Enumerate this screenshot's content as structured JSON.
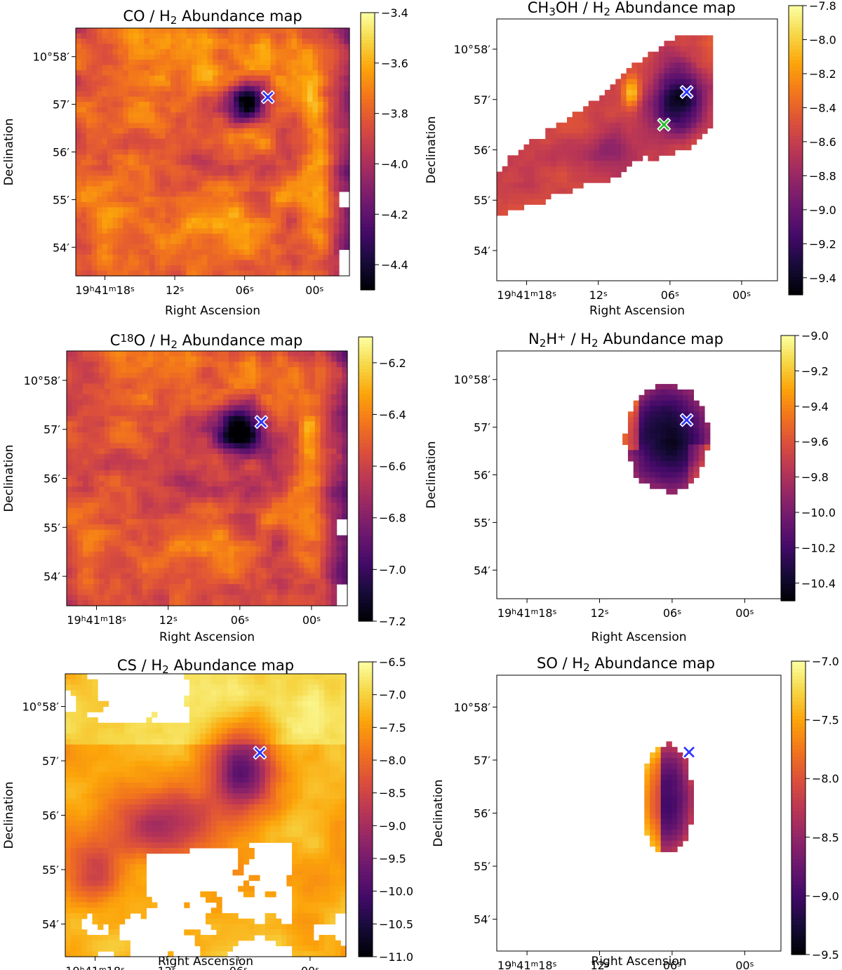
{
  "figure": {
    "common": {
      "xlabel": "Right Ascension",
      "ylabel": "Declination",
      "x_ticks": [
        {
          "h": "19",
          "m": "41",
          "s": "18"
        },
        {
          "s": "12"
        },
        {
          "s": "06"
        },
        {
          "s": "00"
        }
      ],
      "y_ticks": [
        {
          "deg": "10",
          "min": "58"
        },
        {
          "min": "57"
        },
        {
          "min": "56"
        },
        {
          "min": "55"
        },
        {
          "min": "54"
        }
      ],
      "colormap": "inferno",
      "marker_colors": {
        "blue": "#2b33ff",
        "green": "#2bbf2b"
      }
    }
  },
  "chart_data": [
    {
      "type": "heatmap",
      "title": {
        "pre": "CO / H",
        "sub": "2",
        "post": " Abundance map"
      },
      "xlabel": "Right Ascension",
      "ylabel": "Declination",
      "colorbar": {
        "range": [
          -4.5,
          -3.4
        ],
        "ticks": [
          "−3.4",
          "−3.6",
          "−3.8",
          "−4.0",
          "−4.2",
          "−4.4"
        ],
        "tick_values": [
          -3.4,
          -3.6,
          -3.8,
          -4.0,
          -4.2,
          -4.4
        ]
      },
      "markers": [
        {
          "color": "blue",
          "ra_s": 4.0,
          "dec_min": 57.15
        }
      ],
      "map": "co"
    },
    {
      "type": "heatmap",
      "title": {
        "pre": "CH",
        "sub": "3",
        "post": "OH / H",
        "sub2": "2",
        "post2": " Abundance map"
      },
      "xlabel": "Right Ascension",
      "ylabel": "Declination",
      "colorbar": {
        "range": [
          -9.5,
          -7.8
        ],
        "ticks": [
          "−7.8",
          "−8.0",
          "−8.2",
          "−8.4",
          "−8.6",
          "−8.8",
          "−9.0",
          "−9.2",
          "−9.4"
        ],
        "tick_values": [
          -7.8,
          -8.0,
          -8.2,
          -8.4,
          -8.6,
          -8.8,
          -9.0,
          -9.2,
          -9.4
        ]
      },
      "markers": [
        {
          "color": "blue",
          "ra_s": 4.6,
          "dec_min": 57.15
        },
        {
          "color": "green",
          "ra_s": 6.5,
          "dec_min": 56.5
        }
      ],
      "map": "ch3oh"
    },
    {
      "type": "heatmap",
      "title": {
        "pre": "C",
        "sup": "18",
        "post": "O / H",
        "sub2": "2",
        "post2": " Abundance map"
      },
      "xlabel": "Right Ascension",
      "ylabel": "Declination",
      "colorbar": {
        "range": [
          -7.2,
          -6.1
        ],
        "ticks": [
          "−6.2",
          "−6.4",
          "−6.6",
          "−6.8",
          "−7.0",
          "−7.2"
        ],
        "tick_values": [
          -6.2,
          -6.4,
          -6.6,
          -6.8,
          -7.0,
          -7.2
        ]
      },
      "markers": [
        {
          "color": "blue",
          "ra_s": 4.2,
          "dec_min": 57.15
        }
      ],
      "map": "c18o"
    },
    {
      "type": "heatmap",
      "title": {
        "pre": "N",
        "sub": "2",
        "post": "H",
        "sup2": "+",
        "post2": " / H",
        "sub3": "2",
        "post3": " Abundance map"
      },
      "xlabel": "Right Ascension",
      "ylabel": "Declination",
      "colorbar": {
        "range": [
          -10.5,
          -9.0
        ],
        "ticks": [
          "−9.0",
          "−9.2",
          "−9.4",
          "−9.6",
          "−9.8",
          "−10.0",
          "−10.2",
          "−10.4"
        ],
        "tick_values": [
          -9.0,
          -9.2,
          -9.4,
          -9.6,
          -9.8,
          -10.0,
          -10.2,
          -10.4
        ]
      },
      "markers": [
        {
          "color": "blue",
          "ra_s": 4.8,
          "dec_min": 57.15
        }
      ],
      "map": "n2h"
    },
    {
      "type": "heatmap",
      "title": {
        "pre": "CS / H",
        "sub": "2",
        "post": " Abundance map"
      },
      "xlabel": "Right Ascension",
      "ylabel": "Declination",
      "colorbar": {
        "range": [
          -11.0,
          -6.5
        ],
        "ticks": [
          "−6.5",
          "−7.0",
          "−7.5",
          "−8.0",
          "−8.5",
          "−9.0",
          "−9.5",
          "−10.0",
          "−10.5",
          "−11.0"
        ],
        "tick_values": [
          -6.5,
          -7.0,
          -7.5,
          -8.0,
          -8.5,
          -9.0,
          -9.5,
          -10.0,
          -10.5,
          -11.0
        ]
      },
      "markers": [
        {
          "color": "blue",
          "ra_s": 4.2,
          "dec_min": 57.15
        }
      ],
      "map": "cs"
    },
    {
      "type": "heatmap",
      "title": {
        "pre": "SO / H",
        "sub": "2",
        "post": " Abundance map"
      },
      "xlabel": "Right Ascension",
      "ylabel": "Declination",
      "colorbar": {
        "range": [
          -9.5,
          -7.0
        ],
        "ticks": [
          "−7.0",
          "−7.5",
          "−8.0",
          "−8.5",
          "−9.0",
          "−9.5"
        ],
        "tick_values": [
          -7.0,
          -7.5,
          -8.0,
          -8.5,
          -9.0,
          -9.5
        ]
      },
      "markers": [
        {
          "color": "blue",
          "ra_s": 4.6,
          "dec_min": 57.15
        }
      ],
      "map": "so"
    }
  ]
}
